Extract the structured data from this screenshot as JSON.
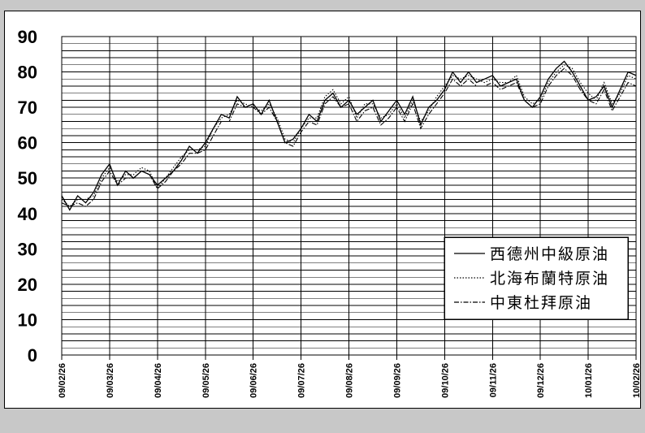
{
  "chart_data": {
    "type": "line",
    "x_labels": [
      "09/02/26",
      "09/03/26",
      "09/04/26",
      "09/05/26",
      "09/06/26",
      "09/07/26",
      "09/08/26",
      "09/09/26",
      "09/10/26",
      "09/11/26",
      "09/12/26",
      "10/01/26",
      "10/02/26"
    ],
    "ylim": [
      0,
      90
    ],
    "y_ticks": [
      0,
      10,
      20,
      30,
      40,
      50,
      60,
      70,
      80,
      90
    ],
    "grid": true,
    "legend_position": "bottom-right",
    "series": [
      {
        "name": "西德州中級原油",
        "style": "solid",
        "values": [
          45,
          41,
          45,
          43,
          46,
          51,
          54,
          48,
          52,
          50,
          52,
          51,
          48,
          50,
          52,
          55,
          59,
          57,
          60,
          64,
          68,
          67,
          73,
          70,
          71,
          68,
          72,
          66,
          60,
          61,
          64,
          68,
          66,
          72,
          74,
          70,
          72,
          68,
          70,
          72,
          66,
          69,
          72,
          68,
          73,
          65,
          70,
          72,
          75,
          80,
          77,
          80,
          77,
          78,
          79,
          76,
          77,
          78,
          72,
          70,
          73,
          78,
          81,
          83,
          80,
          76,
          72,
          73,
          76,
          70,
          75,
          80,
          79
        ]
      },
      {
        "name": "北海布蘭特原油",
        "style": "dotted",
        "values": [
          44,
          42,
          44,
          44,
          45,
          50,
          53,
          49,
          51,
          51,
          53,
          52,
          47,
          50,
          53,
          56,
          58,
          58,
          59,
          64,
          67,
          68,
          72,
          71,
          70,
          69,
          71,
          67,
          61,
          60,
          64,
          67,
          67,
          73,
          75,
          71,
          73,
          67,
          71,
          71,
          67,
          68,
          71,
          67,
          72,
          66,
          69,
          73,
          76,
          79,
          78,
          79,
          78,
          77,
          78,
          77,
          77,
          79,
          73,
          71,
          72,
          77,
          80,
          82,
          81,
          77,
          74,
          72,
          77,
          71,
          74,
          79,
          78
        ]
      },
      {
        "name": "中東杜拜原油",
        "style": "dashdot",
        "values": [
          43,
          42,
          43,
          42,
          44,
          49,
          52,
          48,
          50,
          50,
          52,
          51,
          47,
          49,
          52,
          54,
          57,
          57,
          58,
          62,
          66,
          66,
          71,
          70,
          70,
          68,
          70,
          66,
          60,
          59,
          63,
          66,
          65,
          71,
          73,
          70,
          71,
          66,
          69,
          70,
          65,
          67,
          70,
          66,
          71,
          64,
          68,
          71,
          74,
          78,
          76,
          78,
          76,
          76,
          77,
          75,
          76,
          77,
          72,
          70,
          71,
          76,
          79,
          81,
          79,
          75,
          72,
          71,
          75,
          69,
          73,
          77,
          76
        ]
      }
    ]
  }
}
